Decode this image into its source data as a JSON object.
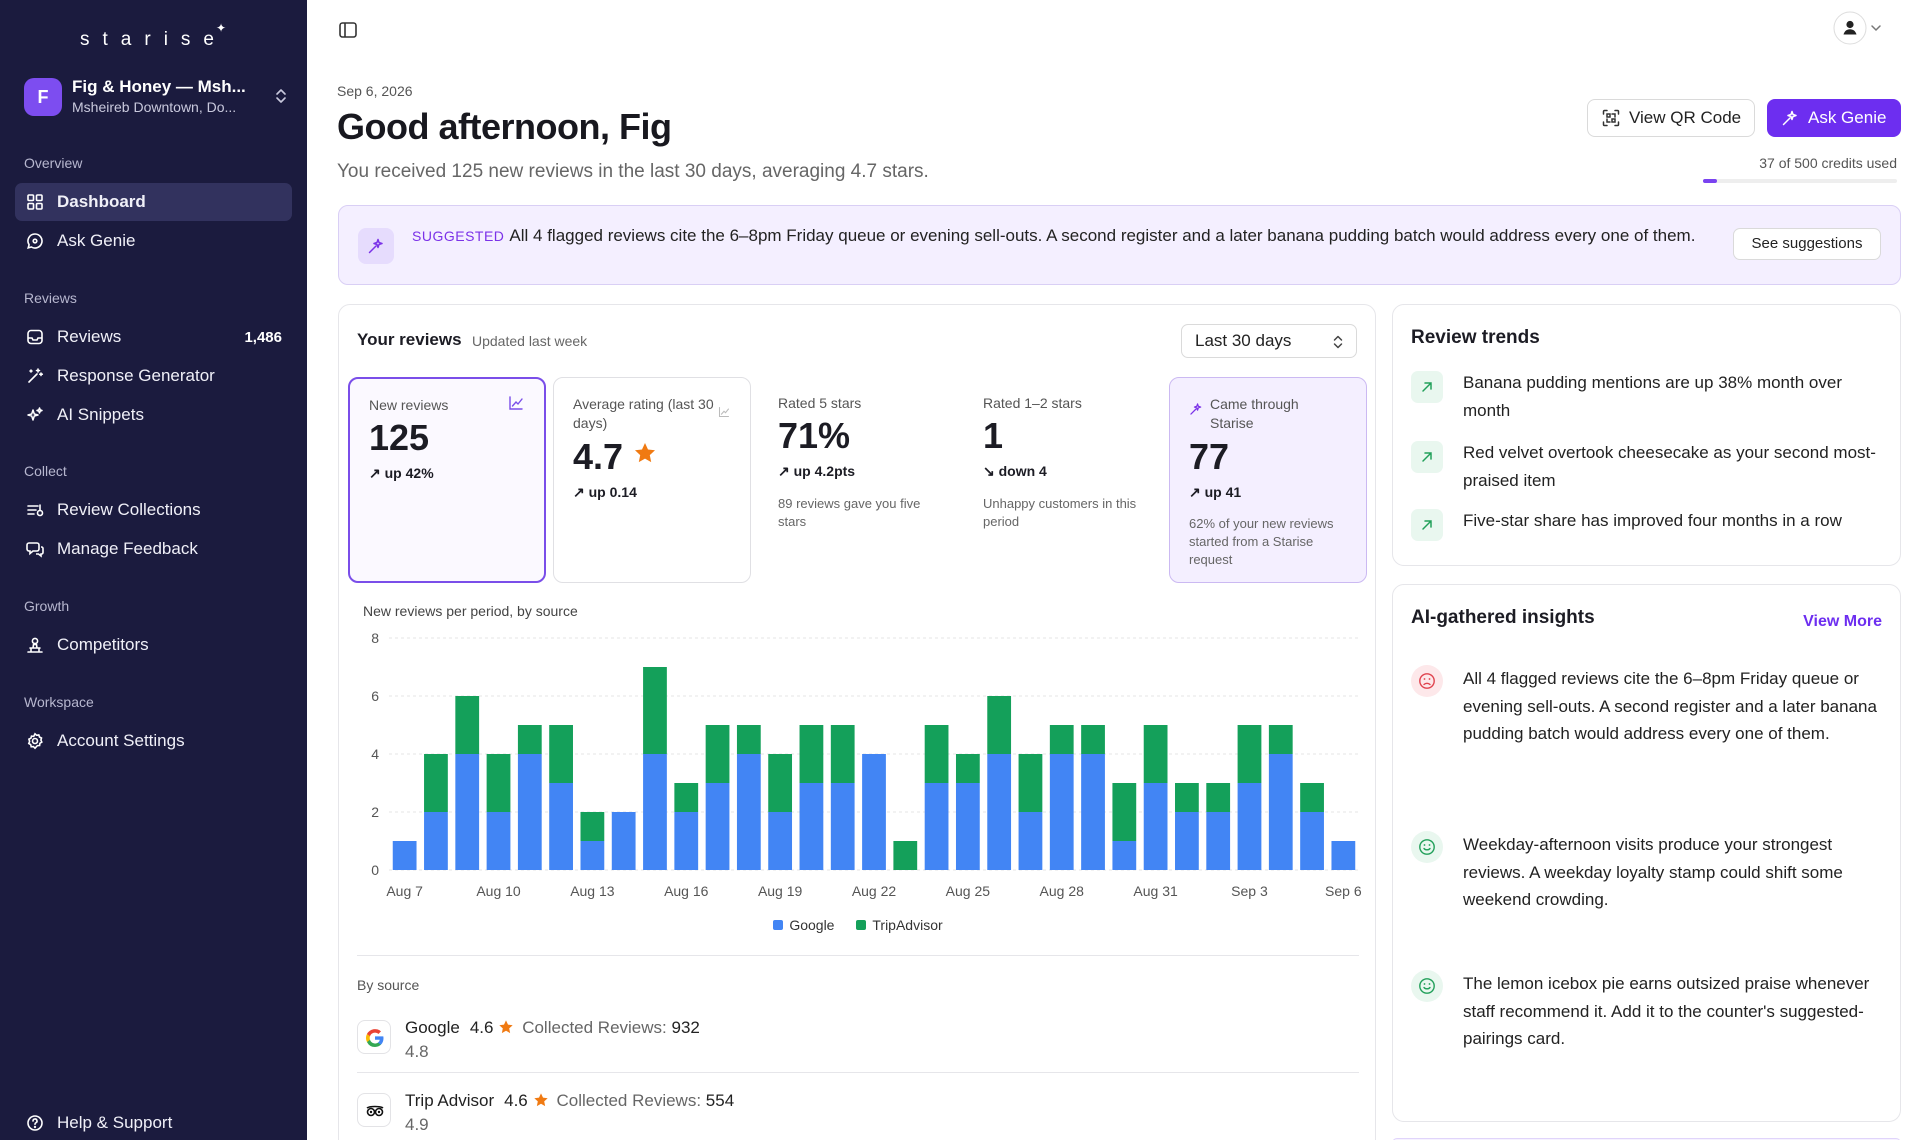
{
  "brand": {
    "logo": "starise",
    "spark": "✦"
  },
  "org": {
    "avatar": "F",
    "name": "Fig & Honey — Msh...",
    "location": "Msheireb Downtown, Do..."
  },
  "sidebar": {
    "sections": [
      {
        "label": "Overview",
        "items": [
          {
            "label": "Dashboard",
            "icon": "dashboard-icon"
          },
          {
            "label": "Ask Genie",
            "icon": "chat-icon"
          }
        ]
      },
      {
        "label": "Reviews",
        "items": [
          {
            "label": "Reviews",
            "icon": "inbox-icon",
            "badge": "1,486"
          },
          {
            "label": "Response Generator",
            "icon": "wand-icon"
          },
          {
            "label": "AI Snippets",
            "icon": "sparkle-icon"
          }
        ]
      },
      {
        "label": "Collect",
        "items": [
          {
            "label": "Review Collections",
            "icon": "collection-icon"
          },
          {
            "label": "Manage Feedback",
            "icon": "feedback-icon"
          }
        ]
      },
      {
        "label": "Growth",
        "items": [
          {
            "label": "Competitors",
            "icon": "competitors-icon"
          }
        ]
      },
      {
        "label": "Workspace",
        "items": [
          {
            "label": "Account Settings",
            "icon": "gear-icon"
          }
        ]
      }
    ],
    "help": "Help & Support"
  },
  "header": {
    "date": "Sep 6, 2026",
    "greeting": "Good afternoon, Fig",
    "subtitle": "You received 125 new reviews in the last 30 days, averaging 4.7 stars.",
    "qr_label": "View QR Code",
    "genie_label": "Ask Genie",
    "credits": "37 of 500 credits used",
    "credits_used": 37,
    "credits_total": 500
  },
  "suggestion": {
    "tag": "SUGGESTED",
    "text": "All 4 flagged reviews cite the 6–8pm Friday queue or evening sell-outs. A second register and a later banana pudding batch would address every one of them.",
    "button": "See suggestions"
  },
  "reviews": {
    "title": "Your reviews",
    "updated": "Updated last week",
    "period": "Last 30 days",
    "stats": [
      {
        "label": "New reviews",
        "value": "125",
        "change": "up 42%",
        "direction": "up",
        "desc": ""
      },
      {
        "label": "Average rating (last 30 days)",
        "value": "4.7",
        "change": "up 0.14",
        "direction": "up",
        "desc": ""
      },
      {
        "label": "Rated 5 stars",
        "value": "71%",
        "change": "up 4.2pts",
        "direction": "up",
        "desc": "89 reviews gave you five stars"
      },
      {
        "label": "Rated 1–2 stars",
        "value": "1",
        "change": "down 4",
        "direction": "down",
        "desc": "Unhappy customers in this period"
      },
      {
        "label": "Came through Starise",
        "value": "77",
        "change": "up 41",
        "direction": "up",
        "desc": "62% of your new reviews started from a Starise request"
      }
    ],
    "chart_title": "New reviews per period, by source",
    "by_source_label": "By source",
    "sources": [
      {
        "name": "Google",
        "rating": "4.6",
        "collected_label": "Collected Reviews:",
        "collected": "932",
        "sub": "4.8",
        "icon": "google-icon"
      },
      {
        "name": "Trip Advisor",
        "rating": "4.6",
        "collected_label": "Collected Reviews:",
        "collected": "554",
        "sub": "4.9",
        "icon": "tripadvisor-icon"
      }
    ]
  },
  "chart_data": {
    "type": "bar",
    "stacked": true,
    "title": "New reviews per period, by source",
    "ylim": [
      0,
      8
    ],
    "yticks": [
      0,
      2,
      4,
      6,
      8
    ],
    "categories": [
      "Aug 7",
      "Aug 8",
      "Aug 9",
      "Aug 10",
      "Aug 11",
      "Aug 12",
      "Aug 13",
      "Aug 14",
      "Aug 15",
      "Aug 16",
      "Aug 17",
      "Aug 18",
      "Aug 19",
      "Aug 20",
      "Aug 21",
      "Aug 22",
      "Aug 23",
      "Aug 24",
      "Aug 25",
      "Aug 26",
      "Aug 27",
      "Aug 28",
      "Aug 29",
      "Aug 30",
      "Aug 31",
      "Sep 1",
      "Sep 2",
      "Sep 3",
      "Sep 4",
      "Sep 5",
      "Sep 6"
    ],
    "tick_labels": [
      "Aug 7",
      "Aug 10",
      "Aug 13",
      "Aug 16",
      "Aug 19",
      "Aug 22",
      "Aug 25",
      "Aug 28",
      "Aug 31",
      "Sep 3",
      "Sep 6"
    ],
    "series": [
      {
        "name": "Google",
        "color": "#4285f4",
        "values": [
          1,
          2,
          4,
          2,
          4,
          3,
          1,
          2,
          4,
          2,
          3,
          4,
          2,
          3,
          3,
          4,
          0,
          3,
          3,
          4,
          2,
          4,
          4,
          1,
          3,
          2,
          2,
          3,
          4,
          2,
          1
        ]
      },
      {
        "name": "TripAdvisor",
        "color": "#14a05a",
        "values": [
          0,
          2,
          2,
          2,
          1,
          2,
          1,
          0,
          3,
          1,
          2,
          1,
          2,
          2,
          2,
          0,
          1,
          2,
          1,
          2,
          2,
          1,
          1,
          2,
          2,
          1,
          1,
          2,
          1,
          1,
          0
        ]
      }
    ],
    "legend": "bottom",
    "grid": true
  },
  "trends": {
    "title": "Review trends",
    "items": [
      "Banana pudding mentions are up 38% month over month",
      "Red velvet overtook cheesecake as your second most-praised item",
      "Five-star share has improved four months in a row"
    ]
  },
  "insights": {
    "title": "AI-gathered insights",
    "more": "View More",
    "items": [
      {
        "sentiment": "negative",
        "text": "All 4 flagged reviews cite the 6–8pm Friday queue or evening sell-outs. A second register and a later banana pudding batch would address every one of them."
      },
      {
        "sentiment": "positive",
        "text": "Weekday-afternoon visits produce your strongest reviews. A weekday loyalty stamp could shift some weekend crowding."
      },
      {
        "sentiment": "positive",
        "text": "The lemon icebox pie earns outsized praise whenever staff recommend it. Add it to the counter's suggested-pairings card."
      }
    ]
  },
  "colors": {
    "sidebar": "#1b1b3e",
    "accent": "#6d2ef0",
    "google": "#4285f4",
    "tripadvisor": "#14a05a",
    "star": "#f07a12"
  }
}
